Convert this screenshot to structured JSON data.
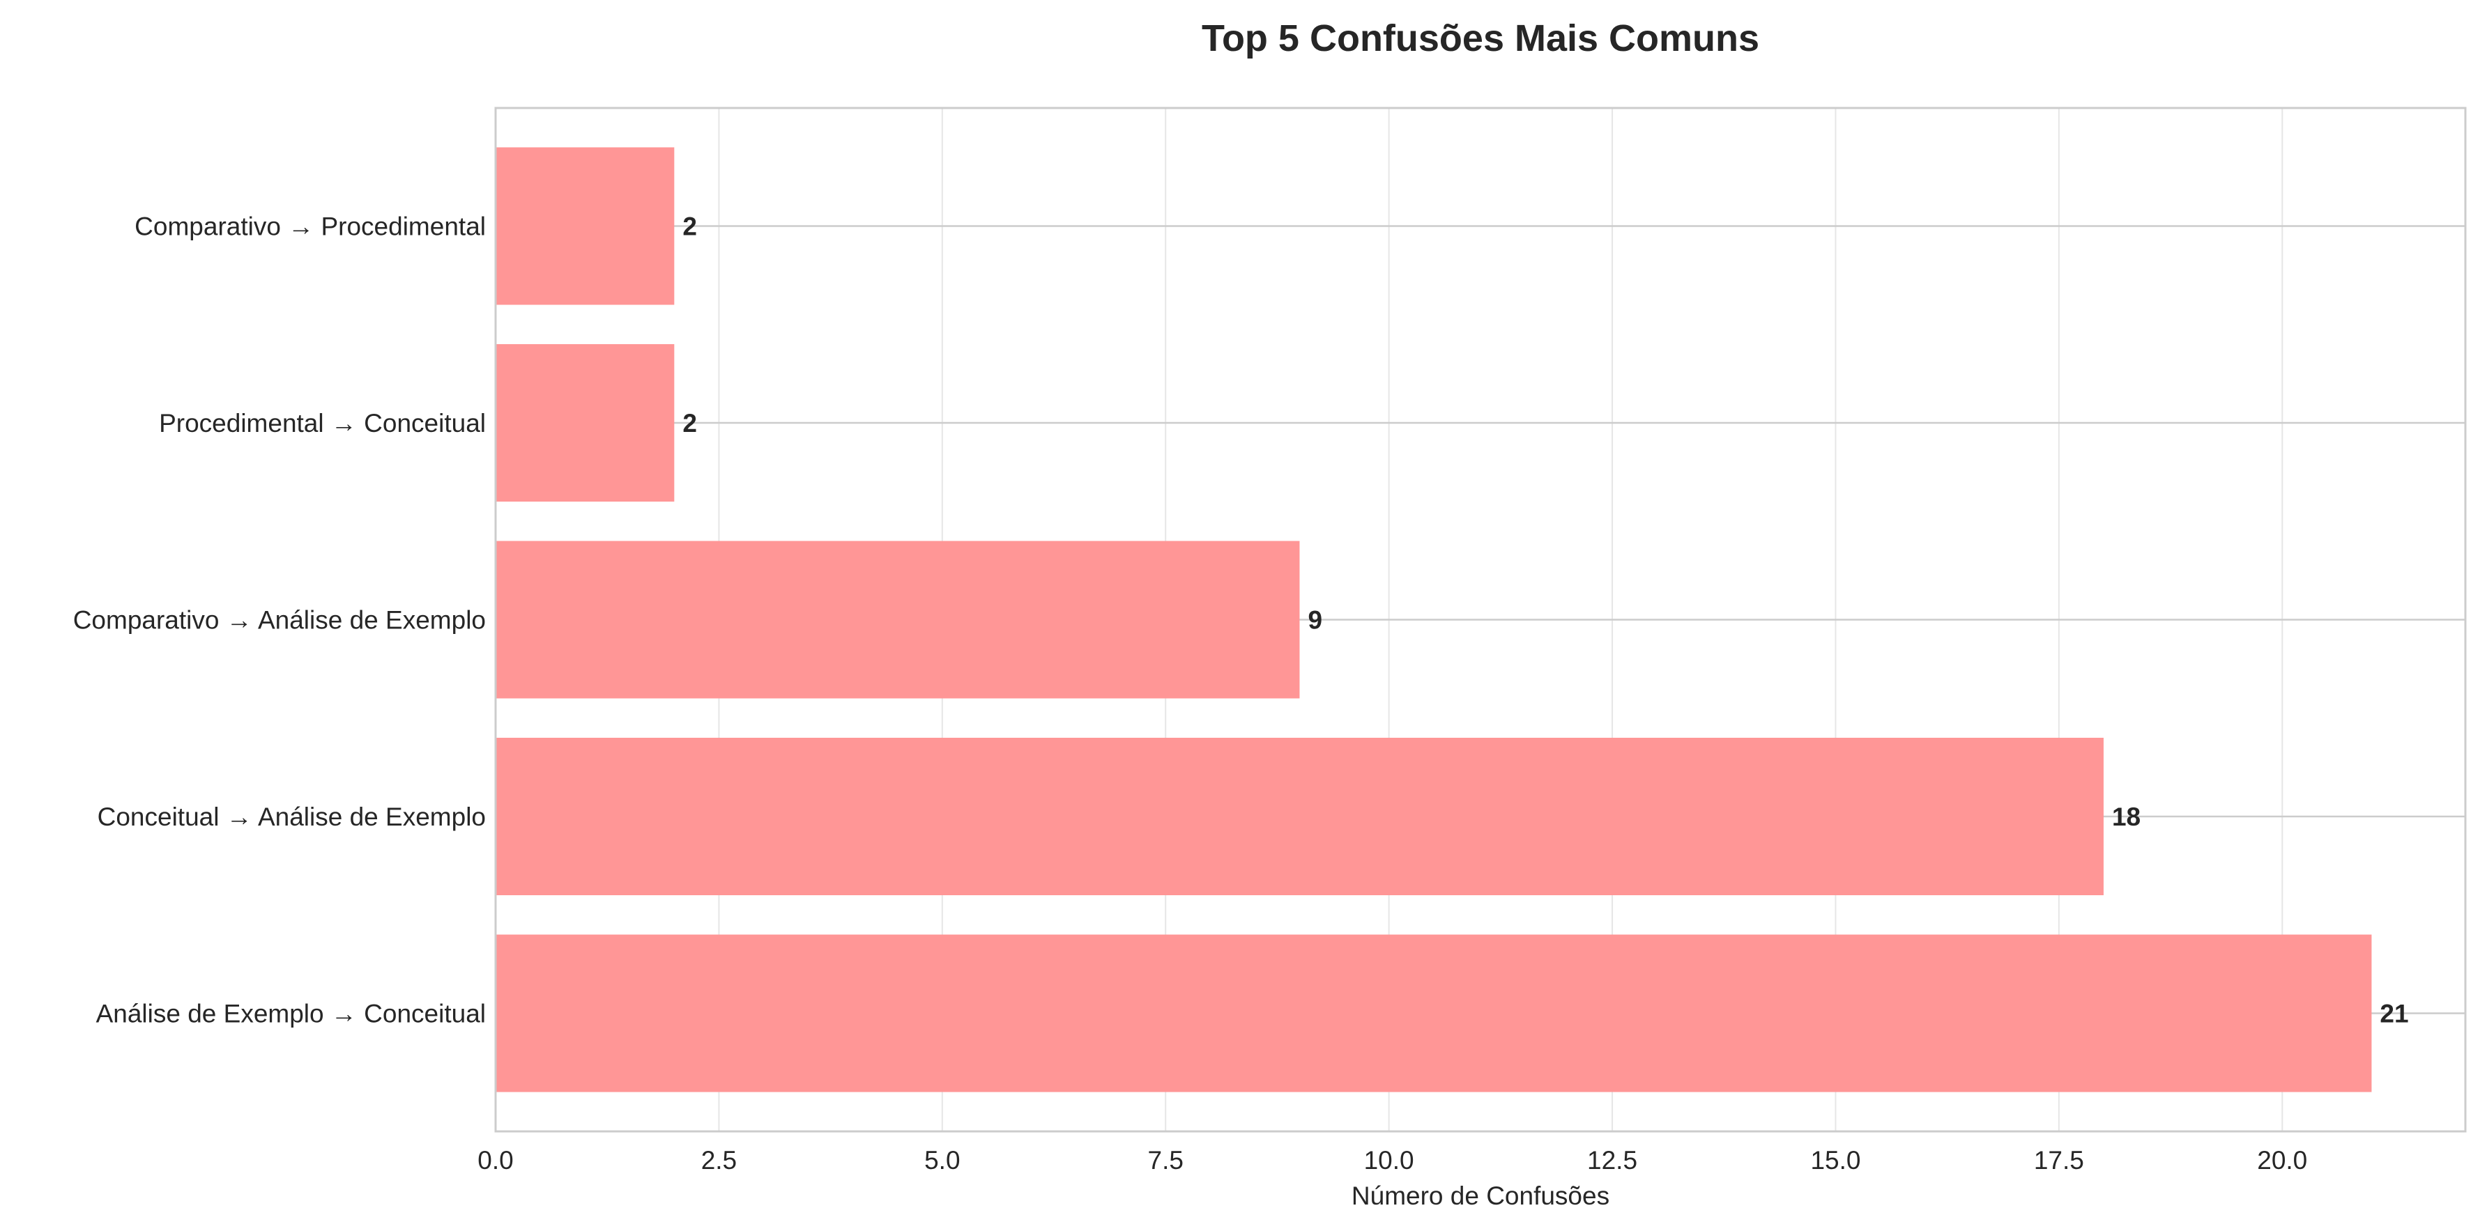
{
  "chart_data": {
    "type": "bar",
    "orientation": "horizontal",
    "title": "Top 5 Confusões Mais Comuns",
    "xlabel": "Número de Confusões",
    "ylabel": "",
    "categories": [
      "Análise de Exemplo → Conceitual",
      "Conceitual → Análise de Exemplo",
      "Comparativo → Análise de Exemplo",
      "Procedimental → Conceitual",
      "Comparativo → Procedimental"
    ],
    "values": [
      21,
      18,
      9,
      2,
      2
    ],
    "value_labels": [
      "21",
      "18",
      "9",
      "2",
      "2"
    ],
    "xlim": [
      0,
      22.05
    ],
    "xticks": [
      0.0,
      2.5,
      5.0,
      7.5,
      10.0,
      12.5,
      15.0,
      17.5,
      20.0
    ],
    "xtick_labels": [
      "0.0",
      "2.5",
      "5.0",
      "7.5",
      "10.0",
      "12.5",
      "15.0",
      "17.5",
      "20.0"
    ],
    "grid": true,
    "bar_color": "#ff9696",
    "bar_edge_color": "#ff9696"
  }
}
